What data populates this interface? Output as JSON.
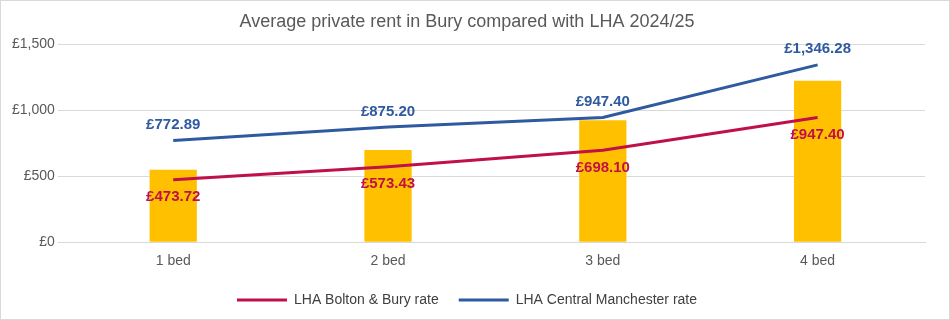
{
  "chart_data": {
    "type": "bar",
    "title": "Average private rent in Bury compared with LHA 2024/25",
    "categories": [
      "1 bed",
      "2 bed",
      "3 bed",
      "4 bed"
    ],
    "series": [
      {
        "type": "bar",
        "color": "#FFC000",
        "values": [
          550,
          700,
          925,
          1225
        ]
      },
      {
        "name": "LHA Bolton & Bury rate",
        "type": "line",
        "color": "#C0104A",
        "values": [
          473.72,
          573.43,
          698.1,
          947.4
        ],
        "value_labels": [
          "£473.72",
          "£573.43",
          "£698.10",
          "£947.40"
        ],
        "data_labels": true
      },
      {
        "name": "LHA Central Manchester rate",
        "type": "line",
        "color": "#2E5AA0",
        "values": [
          772.89,
          875.2,
          947.4,
          1346.28
        ],
        "value_labels": [
          "£772.89",
          "£875.20",
          "£947.40",
          "£1,346.28"
        ],
        "data_labels": true
      }
    ],
    "ylim": [
      0,
      1500
    ],
    "yticks": [
      {
        "value": 0,
        "label": "£0"
      },
      {
        "value": 500,
        "label": "£500"
      },
      {
        "value": 1000,
        "label": "£1,000"
      },
      {
        "value": 1500,
        "label": "£1,500"
      }
    ],
    "grid": true,
    "legend": "bottom"
  }
}
